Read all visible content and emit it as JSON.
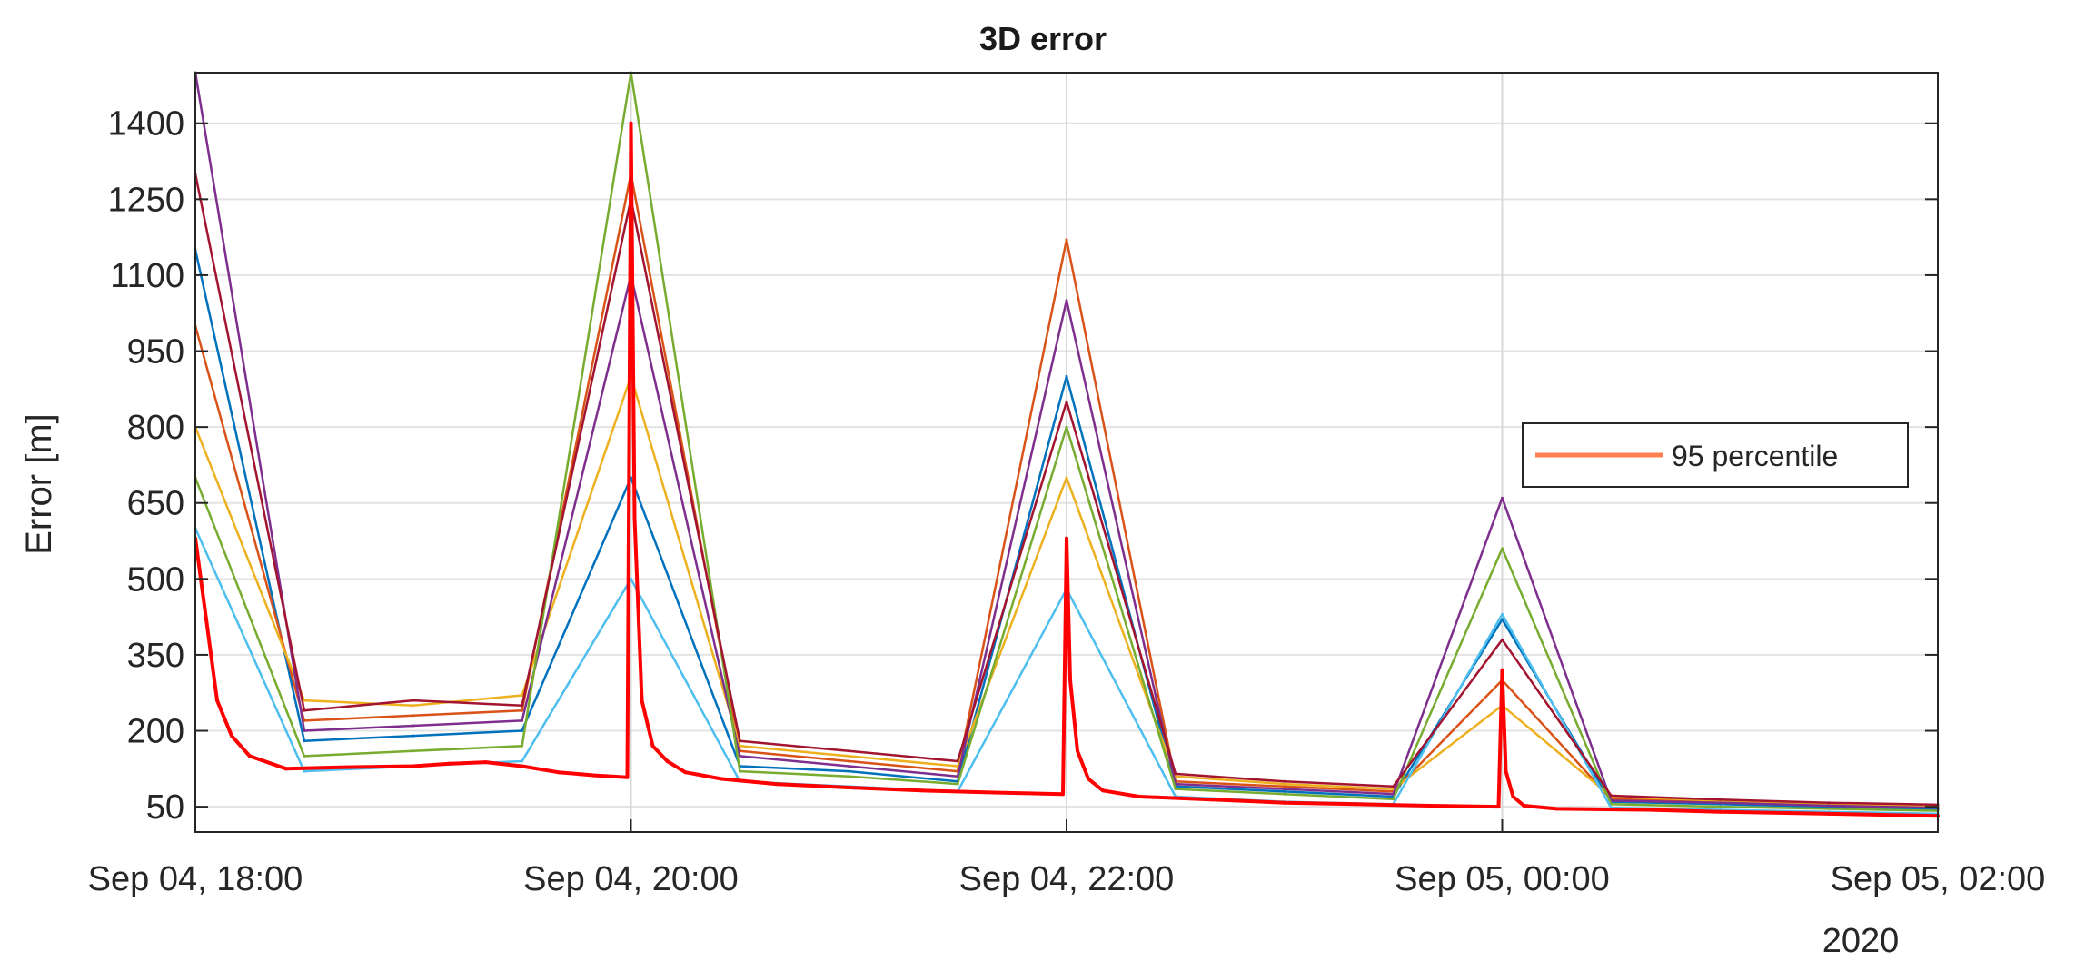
{
  "chart_data": {
    "type": "line",
    "title": "3D error",
    "xlabel": "",
    "ylabel": "Error [m]",
    "x_unit": "datetime",
    "x_ticks": [
      {
        "value": "2020-09-04T18:00",
        "label": "Sep 04, 18:00"
      },
      {
        "value": "2020-09-04T20:00",
        "label": "Sep 04, 20:00"
      },
      {
        "value": "2020-09-04T22:00",
        "label": "Sep 04, 22:00"
      },
      {
        "value": "2020-09-05T00:00",
        "label": "Sep 05, 00:00"
      },
      {
        "value": "2020-09-05T02:00",
        "label": "Sep 05, 02:00"
      }
    ],
    "x_secondary_label": "2020",
    "xlim": [
      "2020-09-04T18:00",
      "2020-09-05T02:00"
    ],
    "y_ticks": [
      50,
      200,
      350,
      500,
      650,
      800,
      950,
      1100,
      1250,
      1400
    ],
    "ylim": [
      0,
      1500
    ],
    "grid": true,
    "legend": {
      "placement": "right",
      "entries": [
        "95 percentile"
      ]
    },
    "series": [
      {
        "name": "95 percentile",
        "color": "#ff0000",
        "x": [
          "2020-09-04T18:00",
          "2020-09-04T18:03",
          "2020-09-04T18:06",
          "2020-09-04T18:10",
          "2020-09-04T18:15",
          "2020-09-04T18:25",
          "2020-09-04T18:40",
          "2020-09-04T19:00",
          "2020-09-04T19:10",
          "2020-09-04T19:20",
          "2020-09-04T19:30",
          "2020-09-04T19:40",
          "2020-09-04T19:50",
          "2020-09-04T19:59",
          "2020-09-04T20:00",
          "2020-09-04T20:01",
          "2020-09-04T20:03",
          "2020-09-04T20:06",
          "2020-09-04T20:10",
          "2020-09-04T20:15",
          "2020-09-04T20:25",
          "2020-09-04T20:40",
          "2020-09-04T21:00",
          "2020-09-04T21:20",
          "2020-09-04T21:40",
          "2020-09-04T21:59",
          "2020-09-04T22:00",
          "2020-09-04T22:01",
          "2020-09-04T22:03",
          "2020-09-04T22:06",
          "2020-09-04T22:10",
          "2020-09-04T22:20",
          "2020-09-04T22:40",
          "2020-09-04T23:00",
          "2020-09-04T23:20",
          "2020-09-04T23:40",
          "2020-09-04T23:59",
          "2020-09-05T00:00",
          "2020-09-05T00:01",
          "2020-09-05T00:03",
          "2020-09-05T00:06",
          "2020-09-05T00:15",
          "2020-09-05T00:40",
          "2020-09-05T01:00",
          "2020-09-05T01:30",
          "2020-09-05T02:00"
        ],
        "values": [
          580,
          420,
          260,
          190,
          150,
          125,
          128,
          130,
          135,
          138,
          130,
          118,
          112,
          108,
          1400,
          620,
          260,
          170,
          140,
          118,
          105,
          95,
          88,
          82,
          78,
          75,
          580,
          300,
          160,
          105,
          82,
          70,
          64,
          58,
          55,
          52,
          50,
          320,
          120,
          70,
          52,
          46,
          44,
          40,
          36,
          32
        ]
      },
      {
        "name": "",
        "color": "#0072bd",
        "x": [
          "2020-09-04T18:00",
          "2020-09-04T18:30",
          "2020-09-04T19:00",
          "2020-09-04T19:30",
          "2020-09-04T20:00",
          "2020-09-04T20:30",
          "2020-09-04T21:00",
          "2020-09-04T21:30",
          "2020-09-04T22:00",
          "2020-09-04T22:30",
          "2020-09-04T23:00",
          "2020-09-04T23:30",
          "2020-09-05T00:00",
          "2020-09-05T00:30",
          "2020-09-05T01:00",
          "2020-09-05T01:30",
          "2020-09-05T02:00"
        ],
        "values": [
          1150,
          180,
          190,
          200,
          700,
          130,
          120,
          100,
          900,
          90,
          80,
          70,
          420,
          60,
          55,
          50,
          45
        ]
      },
      {
        "name": "",
        "color": "#d95319",
        "x": [
          "2020-09-04T18:00",
          "2020-09-04T18:30",
          "2020-09-04T19:00",
          "2020-09-04T19:30",
          "2020-09-04T20:00",
          "2020-09-04T20:30",
          "2020-09-04T21:00",
          "2020-09-04T21:30",
          "2020-09-04T22:00",
          "2020-09-04T22:30",
          "2020-09-04T23:00",
          "2020-09-04T23:30",
          "2020-09-05T00:00",
          "2020-09-05T00:30",
          "2020-09-05T01:00",
          "2020-09-05T01:30",
          "2020-09-05T02:00"
        ],
        "values": [
          1000,
          220,
          230,
          240,
          1300,
          160,
          140,
          120,
          1170,
          100,
          90,
          80,
          300,
          65,
          60,
          55,
          50
        ]
      },
      {
        "name": "",
        "color": "#edb120",
        "x": [
          "2020-09-04T18:00",
          "2020-09-04T18:30",
          "2020-09-04T19:00",
          "2020-09-04T19:30",
          "2020-09-04T20:00",
          "2020-09-04T20:30",
          "2020-09-04T21:00",
          "2020-09-04T21:30",
          "2020-09-04T22:00",
          "2020-09-04T22:30",
          "2020-09-04T23:00",
          "2020-09-04T23:30",
          "2020-09-05T00:00",
          "2020-09-05T00:30",
          "2020-09-05T01:00",
          "2020-09-05T01:30",
          "2020-09-05T02:00"
        ],
        "values": [
          800,
          260,
          250,
          270,
          900,
          170,
          150,
          130,
          700,
          110,
          95,
          85,
          250,
          70,
          62,
          56,
          52
        ]
      },
      {
        "name": "",
        "color": "#7e2f8e",
        "x": [
          "2020-09-04T18:00",
          "2020-09-04T18:30",
          "2020-09-04T19:00",
          "2020-09-04T19:30",
          "2020-09-04T20:00",
          "2020-09-04T20:30",
          "2020-09-04T21:00",
          "2020-09-04T21:30",
          "2020-09-04T22:00",
          "2020-09-04T22:30",
          "2020-09-04T23:00",
          "2020-09-04T23:30",
          "2020-09-05T00:00",
          "2020-09-05T00:30",
          "2020-09-05T01:00",
          "2020-09-05T01:30",
          "2020-09-05T02:00"
        ],
        "values": [
          1500,
          200,
          210,
          220,
          1100,
          150,
          130,
          110,
          1050,
          95,
          85,
          75,
          660,
          62,
          58,
          52,
          48
        ]
      },
      {
        "name": "",
        "color": "#77ac30",
        "x": [
          "2020-09-04T18:00",
          "2020-09-04T18:30",
          "2020-09-04T19:00",
          "2020-09-04T19:30",
          "2020-09-04T20:00",
          "2020-09-04T20:30",
          "2020-09-04T21:00",
          "2020-09-04T21:30",
          "2020-09-04T22:00",
          "2020-09-04T22:30",
          "2020-09-04T23:00",
          "2020-09-04T23:30",
          "2020-09-05T00:00",
          "2020-09-05T00:30",
          "2020-09-05T01:00",
          "2020-09-05T01:30",
          "2020-09-05T02:00"
        ],
        "values": [
          700,
          150,
          160,
          170,
          1500,
          120,
          110,
          95,
          800,
          85,
          75,
          65,
          560,
          55,
          50,
          46,
          42
        ]
      },
      {
        "name": "",
        "color": "#4dbeee",
        "x": [
          "2020-09-04T18:00",
          "2020-09-04T18:30",
          "2020-09-04T19:00",
          "2020-09-04T19:30",
          "2020-09-04T20:00",
          "2020-09-04T20:30",
          "2020-09-04T21:00",
          "2020-09-04T21:30",
          "2020-09-04T22:00",
          "2020-09-04T22:30",
          "2020-09-04T23:00",
          "2020-09-04T23:30",
          "2020-09-05T00:00",
          "2020-09-05T00:30",
          "2020-09-05T01:00",
          "2020-09-05T01:30",
          "2020-09-05T02:00"
        ],
        "values": [
          600,
          120,
          130,
          140,
          500,
          100,
          90,
          80,
          480,
          70,
          60,
          55,
          430,
          48,
          44,
          40,
          36
        ]
      },
      {
        "name": "",
        "color": "#a2142f",
        "x": [
          "2020-09-04T18:00",
          "2020-09-04T18:30",
          "2020-09-04T19:00",
          "2020-09-04T19:30",
          "2020-09-04T20:00",
          "2020-09-04T20:30",
          "2020-09-04T21:00",
          "2020-09-04T21:30",
          "2020-09-04T22:00",
          "2020-09-04T22:30",
          "2020-09-04T23:00",
          "2020-09-04T23:30",
          "2020-09-05T00:00",
          "2020-09-05T00:30",
          "2020-09-05T01:00",
          "2020-09-05T01:30",
          "2020-09-05T02:00"
        ],
        "values": [
          1300,
          240,
          260,
          250,
          1250,
          180,
          160,
          140,
          850,
          115,
          100,
          90,
          380,
          72,
          64,
          58,
          54
        ]
      }
    ]
  }
}
